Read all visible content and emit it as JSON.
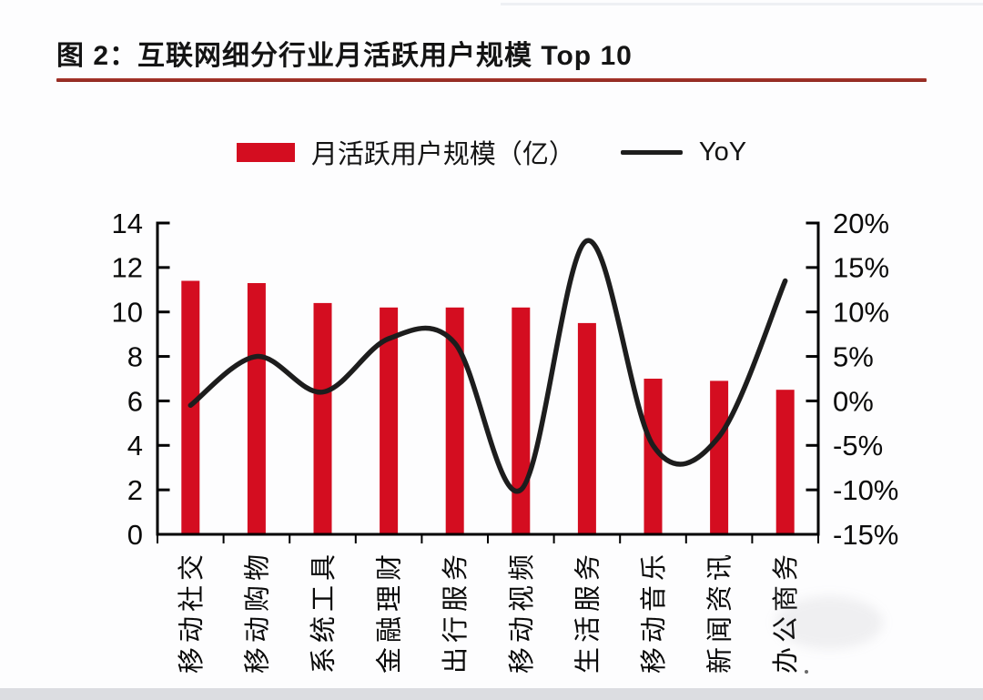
{
  "title": {
    "text": "图 2：互联网细分行业月活跃用户规模 Top 10"
  },
  "legend": [
    {
      "label": "月活跃用户规模（亿）",
      "type": "bar"
    },
    {
      "label": "YoY",
      "type": "line"
    }
  ],
  "colors": {
    "bar": "#d40d20",
    "line": "#1d1d1d",
    "axis": "#000000",
    "title_underline": "#a8342a",
    "background": "#fdfdfe",
    "bottom_strip": "#dcdde1"
  },
  "chart_data": {
    "type": "bar",
    "subtype": "bar+line combo, dual axis",
    "title": "互联网细分行业月活跃用户规模 Top 10",
    "categories": [
      "移动社交",
      "移动购物",
      "系统工具",
      "金融理财",
      "出行服务",
      "移动视频",
      "生活服务",
      "移动音乐",
      "新闻资讯",
      "办公商务"
    ],
    "series": [
      {
        "name": "月活跃用户规模（亿）",
        "type": "bar",
        "axis": "left",
        "values": [
          11.4,
          11.3,
          10.4,
          10.2,
          10.2,
          10.2,
          9.5,
          7.0,
          6.9,
          6.5
        ]
      },
      {
        "name": "YoY",
        "type": "line",
        "axis": "right",
        "unit": "%",
        "values": [
          -0.5,
          5,
          1,
          7,
          6.5,
          -10,
          18,
          -5,
          -4,
          13.5
        ]
      }
    ],
    "left_axis": {
      "range": [
        0,
        14
      ],
      "ticks": [
        0,
        2,
        4,
        6,
        8,
        10,
        12,
        14
      ]
    },
    "right_axis": {
      "range_pct": [
        -15,
        20
      ],
      "ticks": [
        "-15%",
        "-10%",
        "-5%",
        "0%",
        "5%",
        "10%",
        "15%",
        "20%"
      ]
    },
    "grid": false,
    "legend_position": "top",
    "x_labels_rotation": "90deg counterclockwise"
  }
}
